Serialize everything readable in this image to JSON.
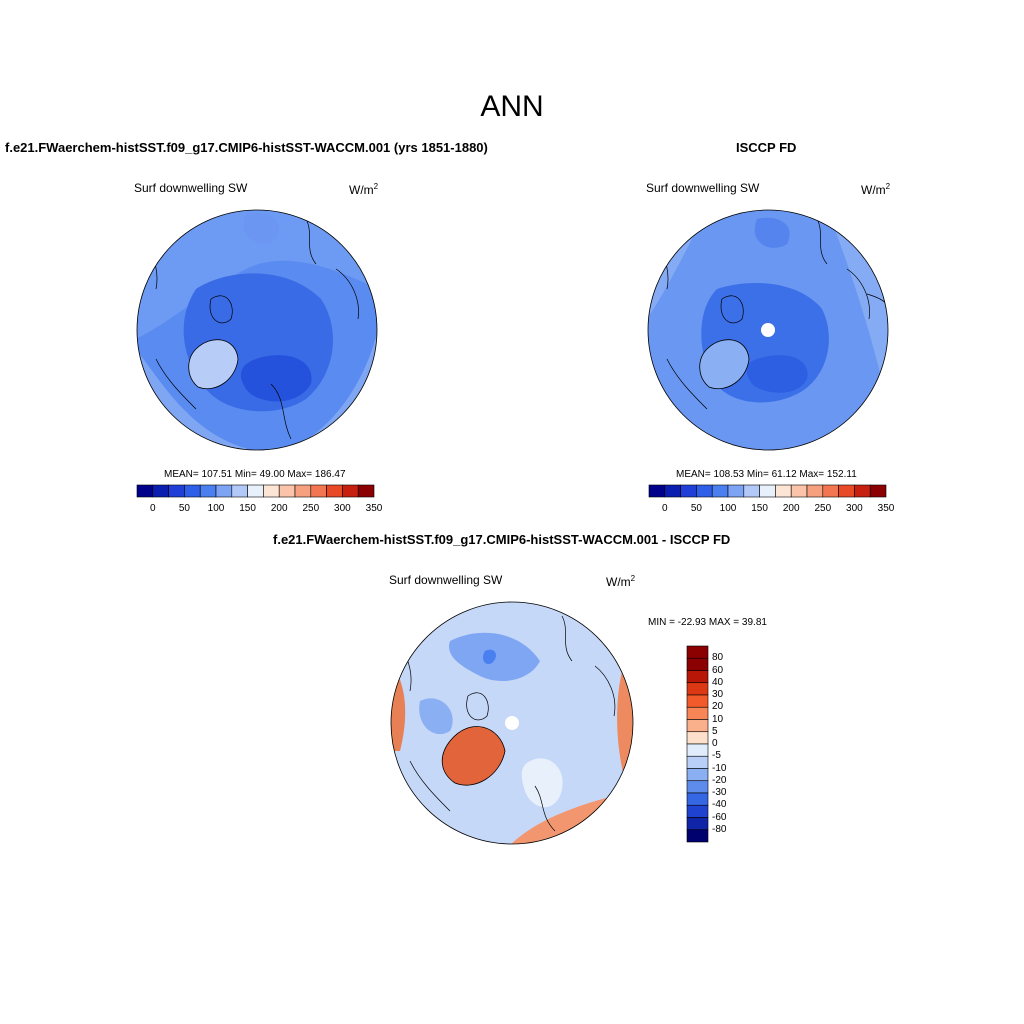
{
  "figure": {
    "title": "ANN"
  },
  "panels": [
    {
      "id": "model",
      "title": "f.e21.FWaerchem-histSST.f09_g17.CMIP6-histSST-WACCM.001 (yrs 1851-1880)",
      "variable": "Surf downwelling SW",
      "units_base": "W/m",
      "units_exp": "2",
      "stats": "MEAN= 107.51  Min=  49.00  Max= 186.47",
      "colorbar_ticks": [
        "0",
        "50",
        "100",
        "150",
        "200",
        "250",
        "300",
        "350"
      ]
    },
    {
      "id": "obs",
      "title": "ISCCP FD",
      "variable": "Surf downwelling SW",
      "units_base": "W/m",
      "units_exp": "2",
      "stats": "MEAN= 108.53  Min=  61.12  Max= 152.11",
      "colorbar_ticks": [
        "0",
        "50",
        "100",
        "150",
        "200",
        "250",
        "300",
        "350"
      ]
    },
    {
      "id": "diff",
      "title": "f.e21.FWaerchem-histSST.f09_g17.CMIP6-histSST-WACCM.001 - ISCCP FD",
      "variable": "Surf downwelling SW",
      "units_base": "W/m",
      "units_exp": "2",
      "stats": "MIN = -22.93 MAX =  39.81",
      "colorbar_ticks": [
        "80",
        "60",
        "40",
        "30",
        "20",
        "10",
        "5",
        "0",
        "-5",
        "-10",
        "-20",
        "-30",
        "-40",
        "-60",
        "-80"
      ]
    }
  ],
  "colors": {
    "abs_scale": [
      "#00008b",
      "#0a1fb0",
      "#1f3fd6",
      "#2f5fe8",
      "#4a7ff0",
      "#7da4f4",
      "#b1c9f8",
      "#e8f0fc",
      "#fde5d6",
      "#fbc4aa",
      "#f7a07e",
      "#f27650",
      "#e84a26",
      "#c8200e",
      "#8b0000"
    ],
    "diff_scale": [
      "#8b0000",
      "#b81607",
      "#dc3814",
      "#f25a2b",
      "#f78556",
      "#fbb08c",
      "#fde0cc",
      "#e0ecfb",
      "#b9cff7",
      "#8aaff2",
      "#5e8cec",
      "#3566e4",
      "#1f43d0",
      "#0f24a6",
      "#00006e"
    ],
    "ocean_model": "#3d6fe6",
    "ocean_obs": "#4a7ff0",
    "diff_bg": "#c9daf8"
  }
}
